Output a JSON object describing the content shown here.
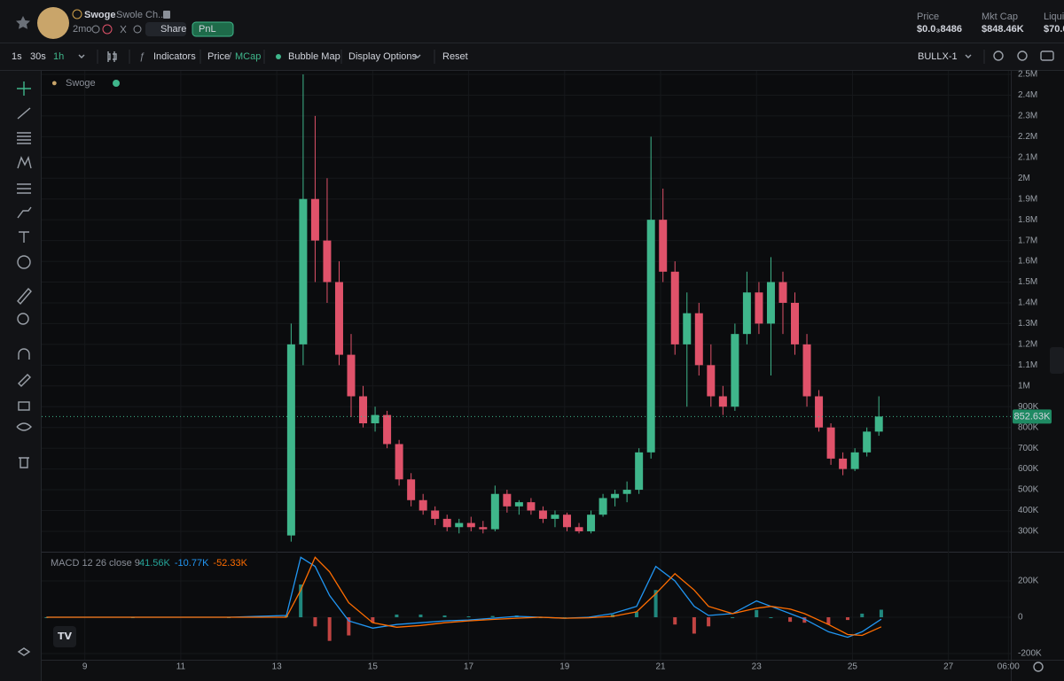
{
  "header": {
    "token": "Swoge",
    "name": "Swole Ch...",
    "age": "2mo",
    "share": "Share",
    "pnl": "PnL",
    "stats": [
      {
        "label": "Price",
        "value": "$0.0₃8486"
      },
      {
        "label": "Mkt Cap",
        "value": "$848.46K"
      },
      {
        "label": "Liqui",
        "value": "$70.0"
      }
    ]
  },
  "toolbar": {
    "intervals": [
      "1s",
      "30s",
      "1h"
    ],
    "indicators": "Indicators",
    "price": "Price",
    "separator": "/",
    "mcap": "MCap",
    "bubble_map": "Bubble Map",
    "display_options": "Display Options",
    "reset": "Reset",
    "layout": "BULLX-1"
  },
  "chart_data": [
    {
      "type": "candlestick",
      "legend": "Swoge",
      "up_color": "#3fb68b",
      "down_color": "#e0526a",
      "x": [
        13.3,
        13.55,
        13.8,
        14.05,
        14.3,
        14.55,
        14.8,
        15.05,
        15.3,
        15.55,
        15.8,
        16.05,
        16.3,
        16.55,
        16.8,
        17.05,
        17.3,
        17.55,
        17.8,
        18.05,
        18.3,
        18.55,
        18.8,
        19.05,
        19.3,
        19.55,
        19.8,
        20.05,
        20.3,
        20.55,
        20.8,
        21.05,
        21.3,
        21.55,
        21.8,
        22.05,
        22.3,
        22.55,
        22.8,
        23.05,
        23.3,
        23.55,
        23.8,
        24.05,
        24.3,
        24.55,
        24.8,
        25.05,
        25.3,
        25.55
      ],
      "open": [
        280000,
        1200000,
        1900000,
        1700000,
        1500000,
        1150000,
        950000,
        820000,
        860000,
        720000,
        550000,
        450000,
        400000,
        360000,
        320000,
        340000,
        320000,
        310000,
        480000,
        420000,
        440000,
        400000,
        360000,
        380000,
        320000,
        300000,
        380000,
        460000,
        480000,
        500000,
        680000,
        1800000,
        1550000,
        1200000,
        1350000,
        1100000,
        950000,
        900000,
        1250000,
        1450000,
        1300000,
        1500000,
        1400000,
        1200000,
        950000,
        800000,
        650000,
        600000,
        680000,
        780000
      ],
      "high": [
        1300000,
        2500000,
        2300000,
        2000000,
        1600000,
        1250000,
        1000000,
        900000,
        880000,
        740000,
        580000,
        480000,
        420000,
        380000,
        360000,
        370000,
        350000,
        520000,
        500000,
        450000,
        460000,
        420000,
        400000,
        390000,
        340000,
        400000,
        480000,
        500000,
        540000,
        700000,
        2200000,
        1950000,
        1600000,
        1450000,
        1400000,
        1200000,
        1000000,
        1300000,
        1550000,
        1500000,
        1620000,
        1550000,
        1450000,
        1250000,
        980000,
        820000,
        680000,
        700000,
        800000,
        950000
      ],
      "low": [
        250000,
        1100000,
        1500000,
        1400000,
        1100000,
        850000,
        800000,
        780000,
        700000,
        520000,
        420000,
        380000,
        330000,
        300000,
        290000,
        300000,
        290000,
        300000,
        390000,
        380000,
        380000,
        340000,
        320000,
        300000,
        290000,
        290000,
        370000,
        420000,
        440000,
        480000,
        650000,
        1500000,
        1150000,
        900000,
        1050000,
        900000,
        860000,
        880000,
        1200000,
        1250000,
        1050000,
        1250000,
        1150000,
        900000,
        780000,
        620000,
        570000,
        590000,
        660000,
        760000
      ],
      "close": [
        1200000,
        1900000,
        1700000,
        1500000,
        1150000,
        950000,
        820000,
        860000,
        720000,
        550000,
        450000,
        400000,
        360000,
        320000,
        340000,
        320000,
        310000,
        480000,
        420000,
        440000,
        400000,
        360000,
        380000,
        320000,
        300000,
        380000,
        460000,
        480000,
        500000,
        680000,
        1800000,
        1550000,
        1200000,
        1350000,
        1100000,
        950000,
        900000,
        1250000,
        1450000,
        1300000,
        1500000,
        1400000,
        1200000,
        950000,
        800000,
        650000,
        600000,
        680000,
        780000,
        852630
      ],
      "last_price": 852630,
      "last_price_label": "852.63K",
      "xlim": [
        8.1,
        28.3
      ],
      "xticks": [
        9,
        11,
        13,
        15,
        17,
        19,
        21,
        23,
        25,
        27,
        {
          "value": 28.25,
          "label": "06:00"
        }
      ],
      "ylim": [
        206000,
        2517000
      ],
      "yticks": [
        {
          "value": 300000,
          "label": "300K"
        },
        {
          "value": 400000,
          "label": "400K"
        },
        {
          "value": 500000,
          "label": "500K"
        },
        {
          "value": 600000,
          "label": "600K"
        },
        {
          "value": 700000,
          "label": "700K"
        },
        {
          "value": 800000,
          "label": "800K"
        },
        {
          "value": 900000,
          "label": "900K"
        },
        {
          "value": 1000000,
          "label": "1M"
        },
        {
          "value": 1100000,
          "label": "1.1M"
        },
        {
          "value": 1200000,
          "label": "1.2M"
        },
        {
          "value": 1300000,
          "label": "1.3M"
        },
        {
          "value": 1400000,
          "label": "1.4M"
        },
        {
          "value": 1500000,
          "label": "1.5M"
        },
        {
          "value": 1600000,
          "label": "1.6M"
        },
        {
          "value": 1700000,
          "label": "1.7M"
        },
        {
          "value": 1800000,
          "label": "1.8M"
        },
        {
          "value": 1900000,
          "label": "1.9M"
        },
        {
          "value": 2000000,
          "label": "2M"
        },
        {
          "value": 2100000,
          "label": "2.1M"
        },
        {
          "value": 2200000,
          "label": "2.2M"
        },
        {
          "value": 2300000,
          "label": "2.3M"
        },
        {
          "value": 2400000,
          "label": "2.4M"
        },
        {
          "value": 2500000,
          "label": "2.5M"
        }
      ],
      "grid": true
    },
    {
      "type": "macd",
      "title": "MACD 12 26 close 9",
      "readout": [
        "41.56K",
        "-10.77K",
        "-52.33K"
      ],
      "readout_colors": [
        "#26a69a",
        "#2196f3",
        "#ff6d00"
      ],
      "x": [
        8.2,
        10,
        12,
        13.2,
        13.5,
        13.8,
        14.1,
        14.5,
        15,
        15.5,
        16,
        16.5,
        17,
        17.5,
        18,
        18.5,
        19,
        19.5,
        20,
        20.5,
        20.9,
        21.3,
        21.7,
        22,
        22.5,
        23,
        23.3,
        23.7,
        24,
        24.5,
        24.9,
        25.2,
        25.6
      ],
      "series": [
        {
          "color": "#2196f3",
          "values": [
            0,
            0,
            0,
            10000,
            330000,
            280000,
            120000,
            -20000,
            -60000,
            -40000,
            -30000,
            -20000,
            -15000,
            -5000,
            5000,
            0,
            -5000,
            0,
            20000,
            60000,
            280000,
            200000,
            60000,
            10000,
            20000,
            90000,
            60000,
            20000,
            -10000,
            -80000,
            -110000,
            -80000,
            -10770
          ]
        },
        {
          "color": "#ff6d00",
          "values": [
            0,
            0,
            0,
            0,
            150000,
            330000,
            250000,
            80000,
            -30000,
            -55000,
            -45000,
            -30000,
            -20000,
            -12000,
            -5000,
            0,
            -5000,
            -3000,
            5000,
            30000,
            130000,
            240000,
            150000,
            60000,
            20000,
            50000,
            60000,
            45000,
            20000,
            -40000,
            -95000,
            -100000,
            -52330
          ]
        }
      ],
      "histogram": {
        "up_color": "#26a69a",
        "down_color": "#ef5350",
        "values": [
          0,
          0,
          0,
          10000,
          180000,
          -50000,
          -130000,
          -100000,
          -30000,
          15000,
          15000,
          10000,
          5000,
          7000,
          10000,
          0,
          0,
          3000,
          15000,
          30000,
          150000,
          -40000,
          -90000,
          -50000,
          0,
          40000,
          0,
          -25000,
          -30000,
          -40000,
          -15000,
          20000,
          41560
        ]
      },
      "ylim": [
        -229000,
        356000
      ],
      "yticks": [
        {
          "value": 200000,
          "label": "200K"
        },
        0,
        {
          "value": -200000,
          "label": "-200K"
        }
      ]
    }
  ]
}
